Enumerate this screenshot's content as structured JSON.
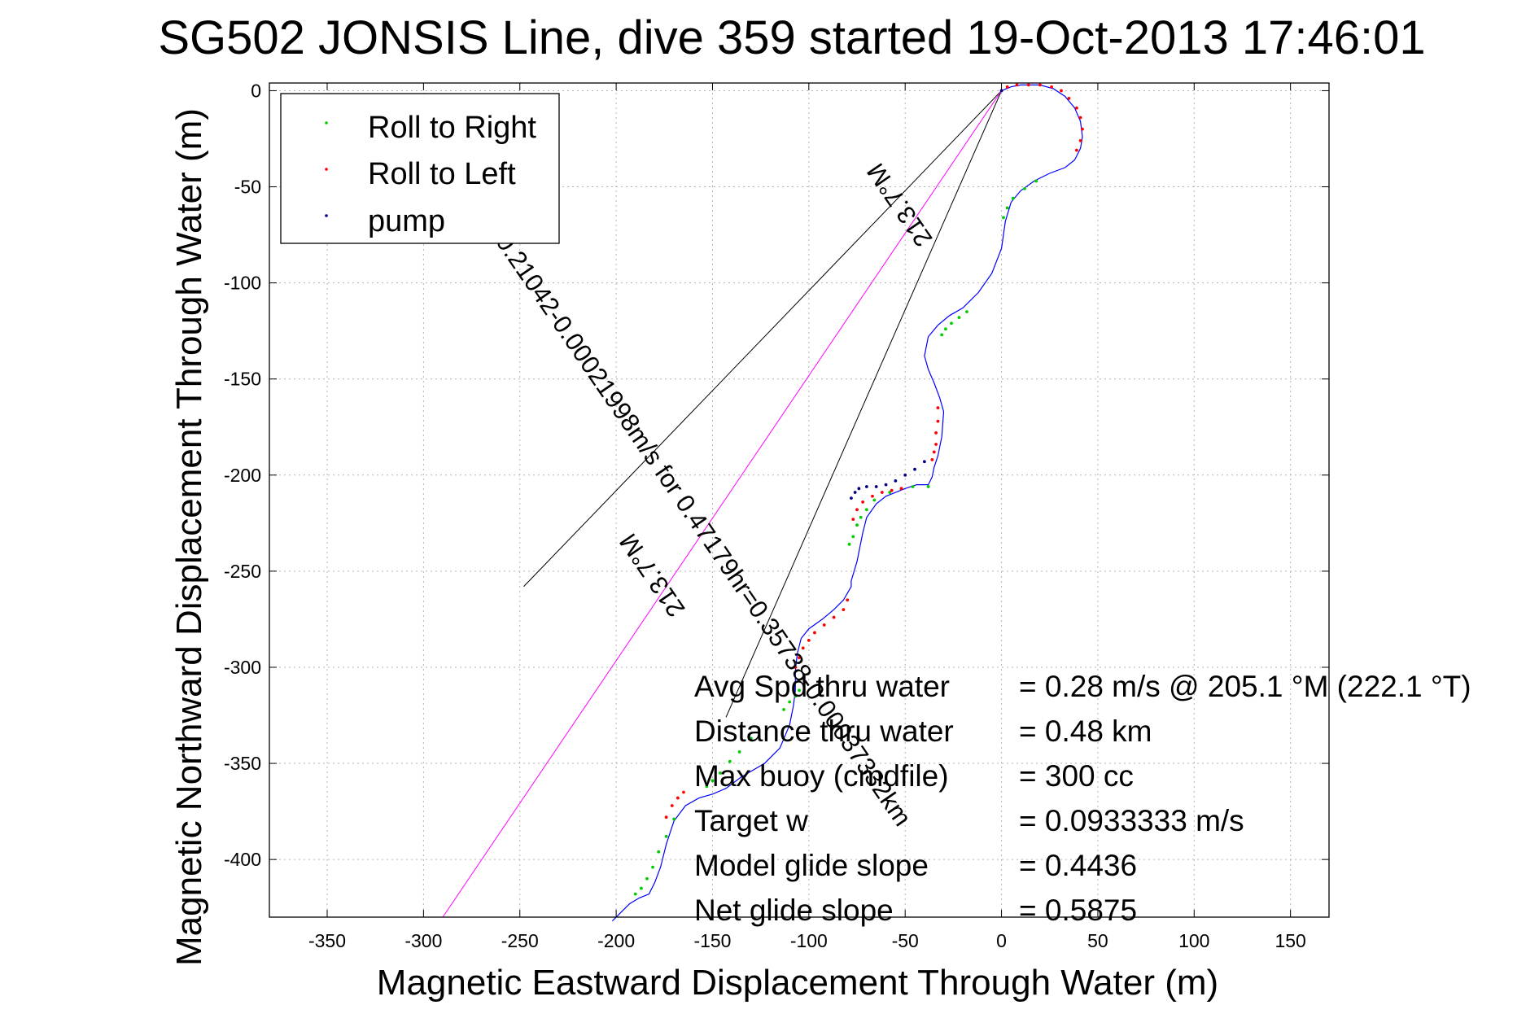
{
  "chart_data": {
    "type": "scatter",
    "title": "SG502 JONSIS Line, dive 359 started 19-Oct-2013 17:46:01",
    "xlabel": "Magnetic Eastward Displacement Through Water (m)",
    "ylabel": "Magnetic Northward Displacement Through Water (m)",
    "xlim": [
      -380,
      170
    ],
    "ylim": [
      -430,
      4
    ],
    "xticks": [
      "-350",
      "-300",
      "-250",
      "-200",
      "-150",
      "-100",
      "-50",
      "0",
      "50",
      "100",
      "150"
    ],
    "yticks": [
      "0",
      "-50",
      "-100",
      "-150",
      "-200",
      "-250",
      "-300",
      "-350",
      "-400"
    ],
    "grid": true,
    "legend_position": "top-left",
    "legend": [
      {
        "label": "Roll to Right",
        "color": "#00cc00"
      },
      {
        "label": "Roll to Left",
        "color": "#ff0000"
      },
      {
        "label": "pump",
        "color": "#000080"
      }
    ],
    "colors": {
      "track": "#0000ff",
      "roll_right": "#00cc00",
      "roll_left": "#ff0000",
      "pump": "#000080",
      "current_vector": "#ff00ff",
      "cone_lines": "#000000"
    },
    "track": {
      "x": [
        0,
        5,
        10,
        15,
        20,
        27,
        33,
        38,
        41,
        42,
        41,
        38,
        33,
        25,
        17,
        10,
        5,
        2,
        0,
        -5,
        -12,
        -20,
        -27,
        -33,
        -38,
        -40,
        -38,
        -35,
        -32,
        -30,
        -31,
        -33,
        -35,
        -36,
        -38,
        -44,
        -50,
        -55,
        -60,
        -65,
        -70,
        -72,
        -75,
        -78,
        -78,
        -82,
        -87,
        -93,
        -100,
        -104,
        -106,
        -107,
        -107,
        -108,
        -110,
        -115,
        -123,
        -135,
        -143,
        -150,
        -157,
        -164,
        -170,
        -174,
        -177,
        -180,
        -183,
        -188,
        -193,
        -198,
        -202
      ],
      "y": [
        0,
        2,
        3,
        3,
        3,
        1,
        -3,
        -9,
        -16,
        -24,
        -30,
        -36,
        -40,
        -43,
        -47,
        -52,
        -58,
        -68,
        -82,
        -95,
        -105,
        -113,
        -117,
        -122,
        -128,
        -138,
        -145,
        -152,
        -160,
        -167,
        -180,
        -190,
        -196,
        -201,
        -205,
        -205,
        -207,
        -209,
        -211,
        -215,
        -222,
        -230,
        -245,
        -255,
        -258,
        -265,
        -270,
        -275,
        -280,
        -285,
        -293,
        -302,
        -312,
        -320,
        -330,
        -342,
        -350,
        -357,
        -363,
        -366,
        -368,
        -372,
        -380,
        -392,
        -404,
        -412,
        -418,
        -420,
        -423,
        -428,
        -432
      ]
    },
    "roll_right_points": {
      "x": [
        18,
        12,
        6,
        3,
        1,
        -18,
        -22,
        -26,
        -29,
        -31,
        -38,
        -46,
        -52,
        -58,
        -66,
        -70,
        -73,
        -75,
        -77,
        -79,
        -105,
        -107,
        -110,
        -113,
        -130,
        -136,
        -141,
        -146,
        -150,
        -153,
        -170,
        -174,
        -178,
        -181,
        -184,
        -187,
        -190
      ],
      "y": [
        -47,
        -51,
        -56,
        -61,
        -66,
        -115,
        -118,
        -121,
        -124,
        -127,
        -206,
        -206,
        -207,
        -209,
        -213,
        -218,
        -222,
        -226,
        -232,
        -236,
        -312,
        -315,
        -318,
        -322,
        -337,
        -344,
        -349,
        -355,
        -359,
        -362,
        -379,
        -388,
        -396,
        -404,
        -410,
        -415,
        -418
      ]
    },
    "roll_left_points": {
      "x": [
        3,
        8,
        14,
        20,
        26,
        31,
        35,
        39,
        41,
        42,
        41,
        39,
        -33,
        -33,
        -34,
        -34,
        -35,
        -36,
        -52,
        -57,
        -62,
        -67,
        -72,
        -75,
        -77,
        -80,
        -82,
        -87,
        -92,
        -97,
        -100,
        -103,
        -105,
        -107,
        -165,
        -168,
        -171,
        -174
      ],
      "y": [
        2,
        3,
        3,
        3,
        2,
        0,
        -4,
        -9,
        -14,
        -20,
        -26,
        -31,
        -165,
        -172,
        -178,
        -184,
        -188,
        -192,
        -207,
        -208,
        -209,
        -211,
        -214,
        -218,
        -223,
        -265,
        -270,
        -274,
        -278,
        -282,
        -286,
        -290,
        -295,
        -300,
        -365,
        -368,
        -372,
        -378
      ]
    },
    "pump_points": {
      "x": [
        0,
        -40,
        -45,
        -50,
        -55,
        -60,
        -65,
        -70,
        -74,
        -76,
        -78
      ],
      "y": [
        0,
        -193,
        -197,
        -200,
        -203,
        -205,
        -206,
        -206,
        -207,
        -209,
        -212
      ]
    },
    "current_vector": {
      "x": [
        0,
        -290
      ],
      "y": [
        0,
        -430
      ]
    },
    "cone_lines": [
      {
        "x": [
          0,
          -248
        ],
        "y": [
          0,
          -258
        ]
      },
      {
        "x": [
          0,
          -143
        ],
        "y": [
          0,
          -326
        ]
      }
    ],
    "diagonal_annotations": [
      "0.21042-0.00021998m/s for 0.47179hr=0.35738-0.00037332km",
      "213.7°M",
      "213.7°M"
    ],
    "stats": [
      {
        "label": "Avg Spd thru water",
        "value": "=  0.28 m/s @ 205.1 °M (222.1 °T)"
      },
      {
        "label": "Distance thru water",
        "value": "=  0.48 km"
      },
      {
        "label": "Max buoy (cmdfile)",
        "value": "= 300 cc"
      },
      {
        "label": "Target w",
        "value": "= 0.0933333 m/s"
      },
      {
        "label": "Model glide slope",
        "value": "= 0.4436"
      },
      {
        "label": "Net glide slope",
        "value": "= 0.5875"
      }
    ]
  }
}
